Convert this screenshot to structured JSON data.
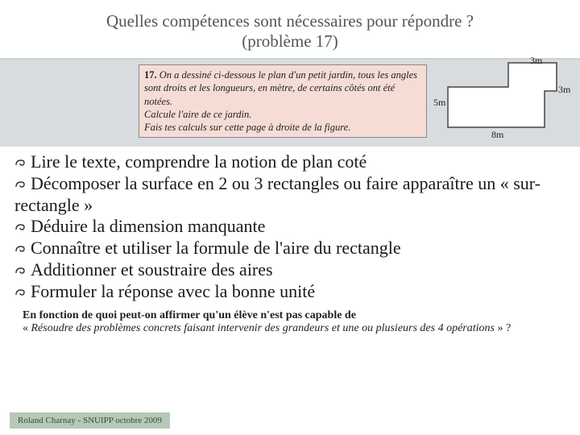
{
  "header": {
    "title_line1": "Quelles compétences sont nécessaires pour répondre ?",
    "title_line2": "(problème 17)"
  },
  "problem": {
    "number_label": "17.",
    "text": "On a dessiné ci-dessous le plan d'un petit jardin, tous les angles sont droits et les longueurs, en mètre, de certains côtés ont été notées.\nCalcule l'aire de ce jardin.\nFais tes calculs sur cette page à droite de la figure."
  },
  "figure": {
    "type": "L-shape-plan",
    "outline_color": "#444444",
    "fill_color": "#ffffff",
    "line_width": 1.5,
    "dimensions": {
      "left_height": {
        "label": "5m",
        "value": 5
      },
      "top_right_width": {
        "label": "3m",
        "value": 3
      },
      "right_notch_height": {
        "label": "3m",
        "value": 3
      },
      "bottom_width": {
        "label": "8m",
        "value": 8
      }
    },
    "label_fontsize": 12,
    "label_color": "#222222"
  },
  "bullets": [
    "Lire le texte, comprendre la notion de plan coté",
    "Décomposer la surface en 2 ou 3 rectangles ou faire apparaître un « sur-rectangle »",
    "Déduire la dimension manquante",
    "Connaître et utiliser la formule de l'aire du rectangle",
    "Additionner et soustraire des aires",
    "Formuler la réponse avec la bonne unité"
  ],
  "question": {
    "line1": "En fonction de quoi peut-on affirmer qu'un élève n'est pas capable de",
    "line2_prefix": "« ",
    "line2_italic": "Résoudre des problèmes concrets faisant intervenir des grandeurs et une ou plusieurs des 4 opérations",
    "line2_suffix": " » ?"
  },
  "footer": {
    "text": "Roland Charnay - SNUIPP octobre 2009"
  },
  "colors": {
    "header_border": "#c9d6c9",
    "gray_band": "#d9dcde",
    "problem_box_bg": "#f5ddd6",
    "problem_box_border": "#888888",
    "footer_bg": "#b6c9b6",
    "page_bg": "#ffffff"
  }
}
